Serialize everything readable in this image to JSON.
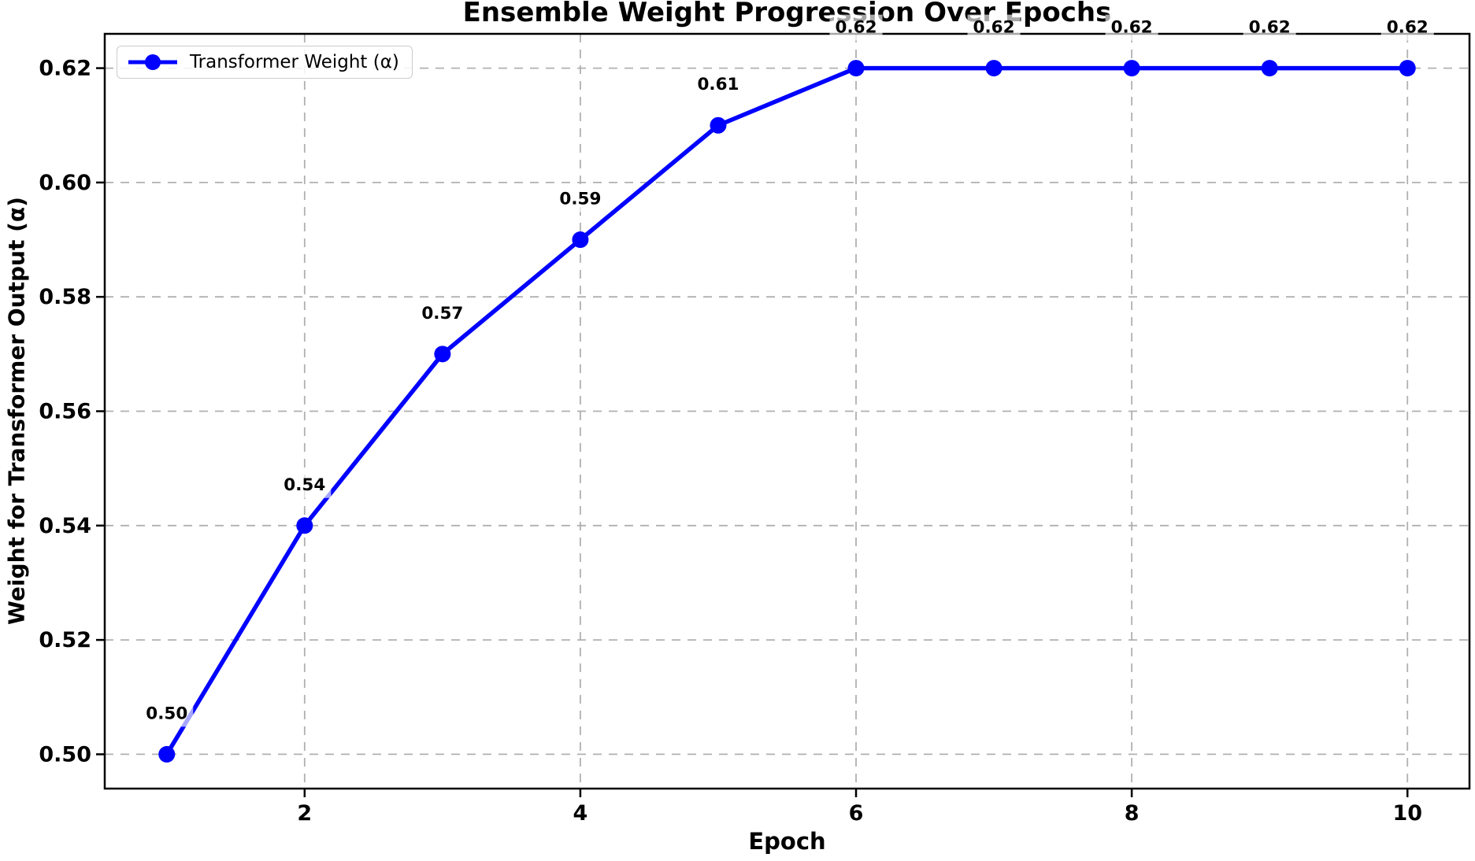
{
  "title": "Ensemble Weight Progression Over Epochs",
  "legend": {
    "label": "Transformer Weight (α)"
  },
  "chart_data": {
    "type": "line",
    "title": "Ensemble Weight Progression Over Epochs",
    "xlabel": "Epoch",
    "ylabel": "Weight for Transformer Output (α)",
    "x": [
      1,
      2,
      3,
      4,
      5,
      6,
      7,
      8,
      9,
      10
    ],
    "series": [
      {
        "name": "Transformer Weight (α)",
        "values": [
          0.5,
          0.54,
          0.57,
          0.59,
          0.61,
          0.62,
          0.62,
          0.62,
          0.62,
          0.62
        ],
        "color": "#0000FF",
        "marker": "circle"
      }
    ],
    "point_labels": [
      "0.50",
      "0.54",
      "0.57",
      "0.59",
      "0.61",
      "0.62",
      "0.62",
      "0.62",
      "0.62",
      "0.62"
    ],
    "xlim": [
      0.55,
      10.45
    ],
    "ylim": [
      0.494,
      0.626
    ],
    "x_ticks": [
      2,
      4,
      6,
      8,
      10
    ],
    "x_tick_labels": [
      "2",
      "4",
      "6",
      "8",
      "10"
    ],
    "y_ticks": [
      0.5,
      0.52,
      0.54,
      0.56,
      0.58,
      0.6,
      0.62
    ],
    "y_tick_labels": [
      "0.50",
      "0.52",
      "0.54",
      "0.56",
      "0.58",
      "0.60",
      "0.62"
    ],
    "grid": "dashed",
    "grid_color": "#b0b0b0",
    "axis_color": "#000000",
    "label_bg": "rgba(255,255,255,0.65)",
    "legend_position": "upper-left"
  }
}
